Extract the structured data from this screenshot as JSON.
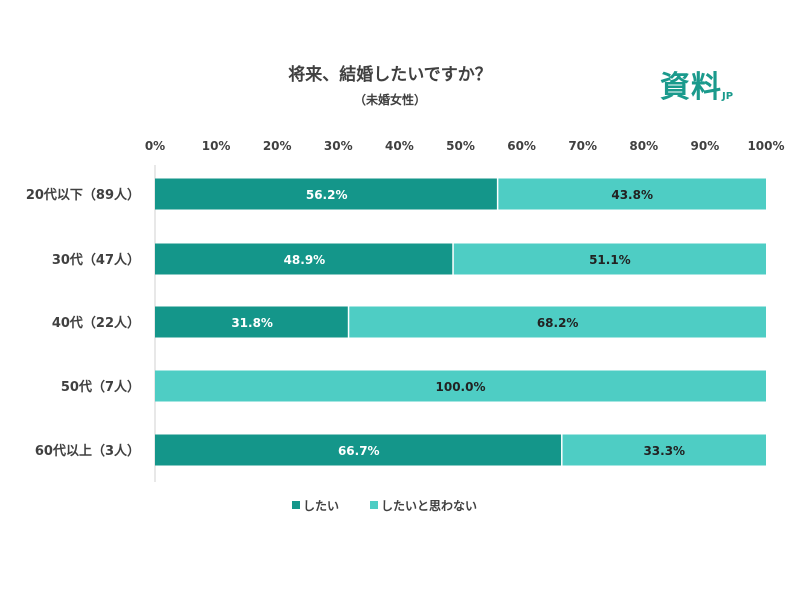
{
  "logo": {
    "text": "資料",
    "suffix": "JP"
  },
  "chart_data": {
    "type": "bar",
    "stacked": true,
    "orientation": "horizontal",
    "title": "将来、結婚したいですか？",
    "subtitle": "（未婚女性）",
    "categories": [
      "20代以下（89人）",
      "30代（47人）",
      "40代（22人）",
      "50代（7人）",
      "60代以上（3人）"
    ],
    "series": [
      {
        "name": "したい",
        "color": "#14968a",
        "values": [
          56.2,
          48.9,
          31.8,
          0,
          66.7
        ]
      },
      {
        "name": "したいと思わない",
        "color": "#4ecdc4",
        "values": [
          43.8,
          51.1,
          68.2,
          100.0,
          33.3
        ]
      }
    ],
    "xlim": [
      0,
      100
    ],
    "xticks": [
      "0%",
      "10%",
      "20%",
      "30%",
      "40%",
      "50%",
      "60%",
      "70%",
      "80%",
      "90%",
      "100%"
    ],
    "grid": false,
    "legend": "bottom"
  }
}
